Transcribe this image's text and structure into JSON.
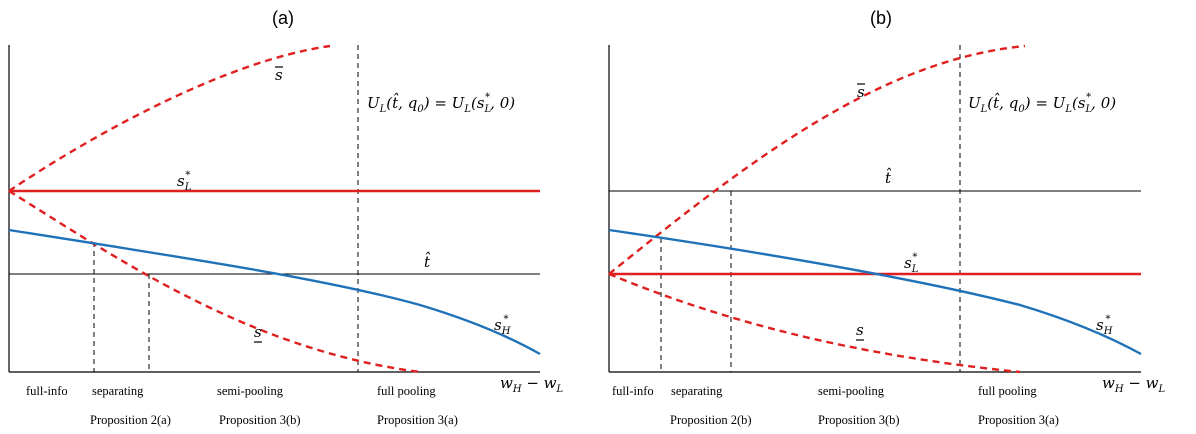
{
  "panels": [
    {
      "title": "(a)",
      "labels": {
        "s_bar": "s",
        "s_under": "s",
        "sL_base": "s",
        "sL_sub": "L",
        "sL_sup": "*",
        "sH_base": "s",
        "sH_sub": "H",
        "sH_sup": "*",
        "t_hat": "t̂",
        "x_axis": "w",
        "x_axis_sub1": "H",
        "x_axis_mid": " − w",
        "x_axis_sub2": "L",
        "condition": "U_L(t̂, q_0) = U_L(s_L^*, 0)"
      },
      "regions": [
        "full-info",
        "separating",
        "semi-pooling",
        "full pooling"
      ],
      "propositions": [
        "Proposition 2(a)",
        "Proposition 3(b)",
        "Proposition 3(a)"
      ]
    },
    {
      "title": "(b)",
      "labels": {
        "s_bar": "s",
        "s_under": "s",
        "sL_base": "s",
        "sL_sub": "L",
        "sL_sup": "*",
        "sH_base": "s",
        "sH_sub": "H",
        "sH_sup": "*",
        "t_hat": "t̂",
        "x_axis": "w",
        "x_axis_sub1": "H",
        "x_axis_mid": " − w",
        "x_axis_sub2": "L",
        "condition": "U_L(t̂, q_0) = U_L(s_L^*, 0)"
      },
      "regions": [
        "full-info",
        "separating",
        "semi-pooling",
        "full pooling"
      ],
      "propositions": [
        "Proposition 2(b)",
        "Proposition 3(b)",
        "Proposition 3(a)"
      ]
    }
  ],
  "colors": {
    "s_L_star": "#e02020",
    "s_bounds": "#e02020",
    "s_H_star": "#1f72b8",
    "t_hat": "#000000"
  }
}
